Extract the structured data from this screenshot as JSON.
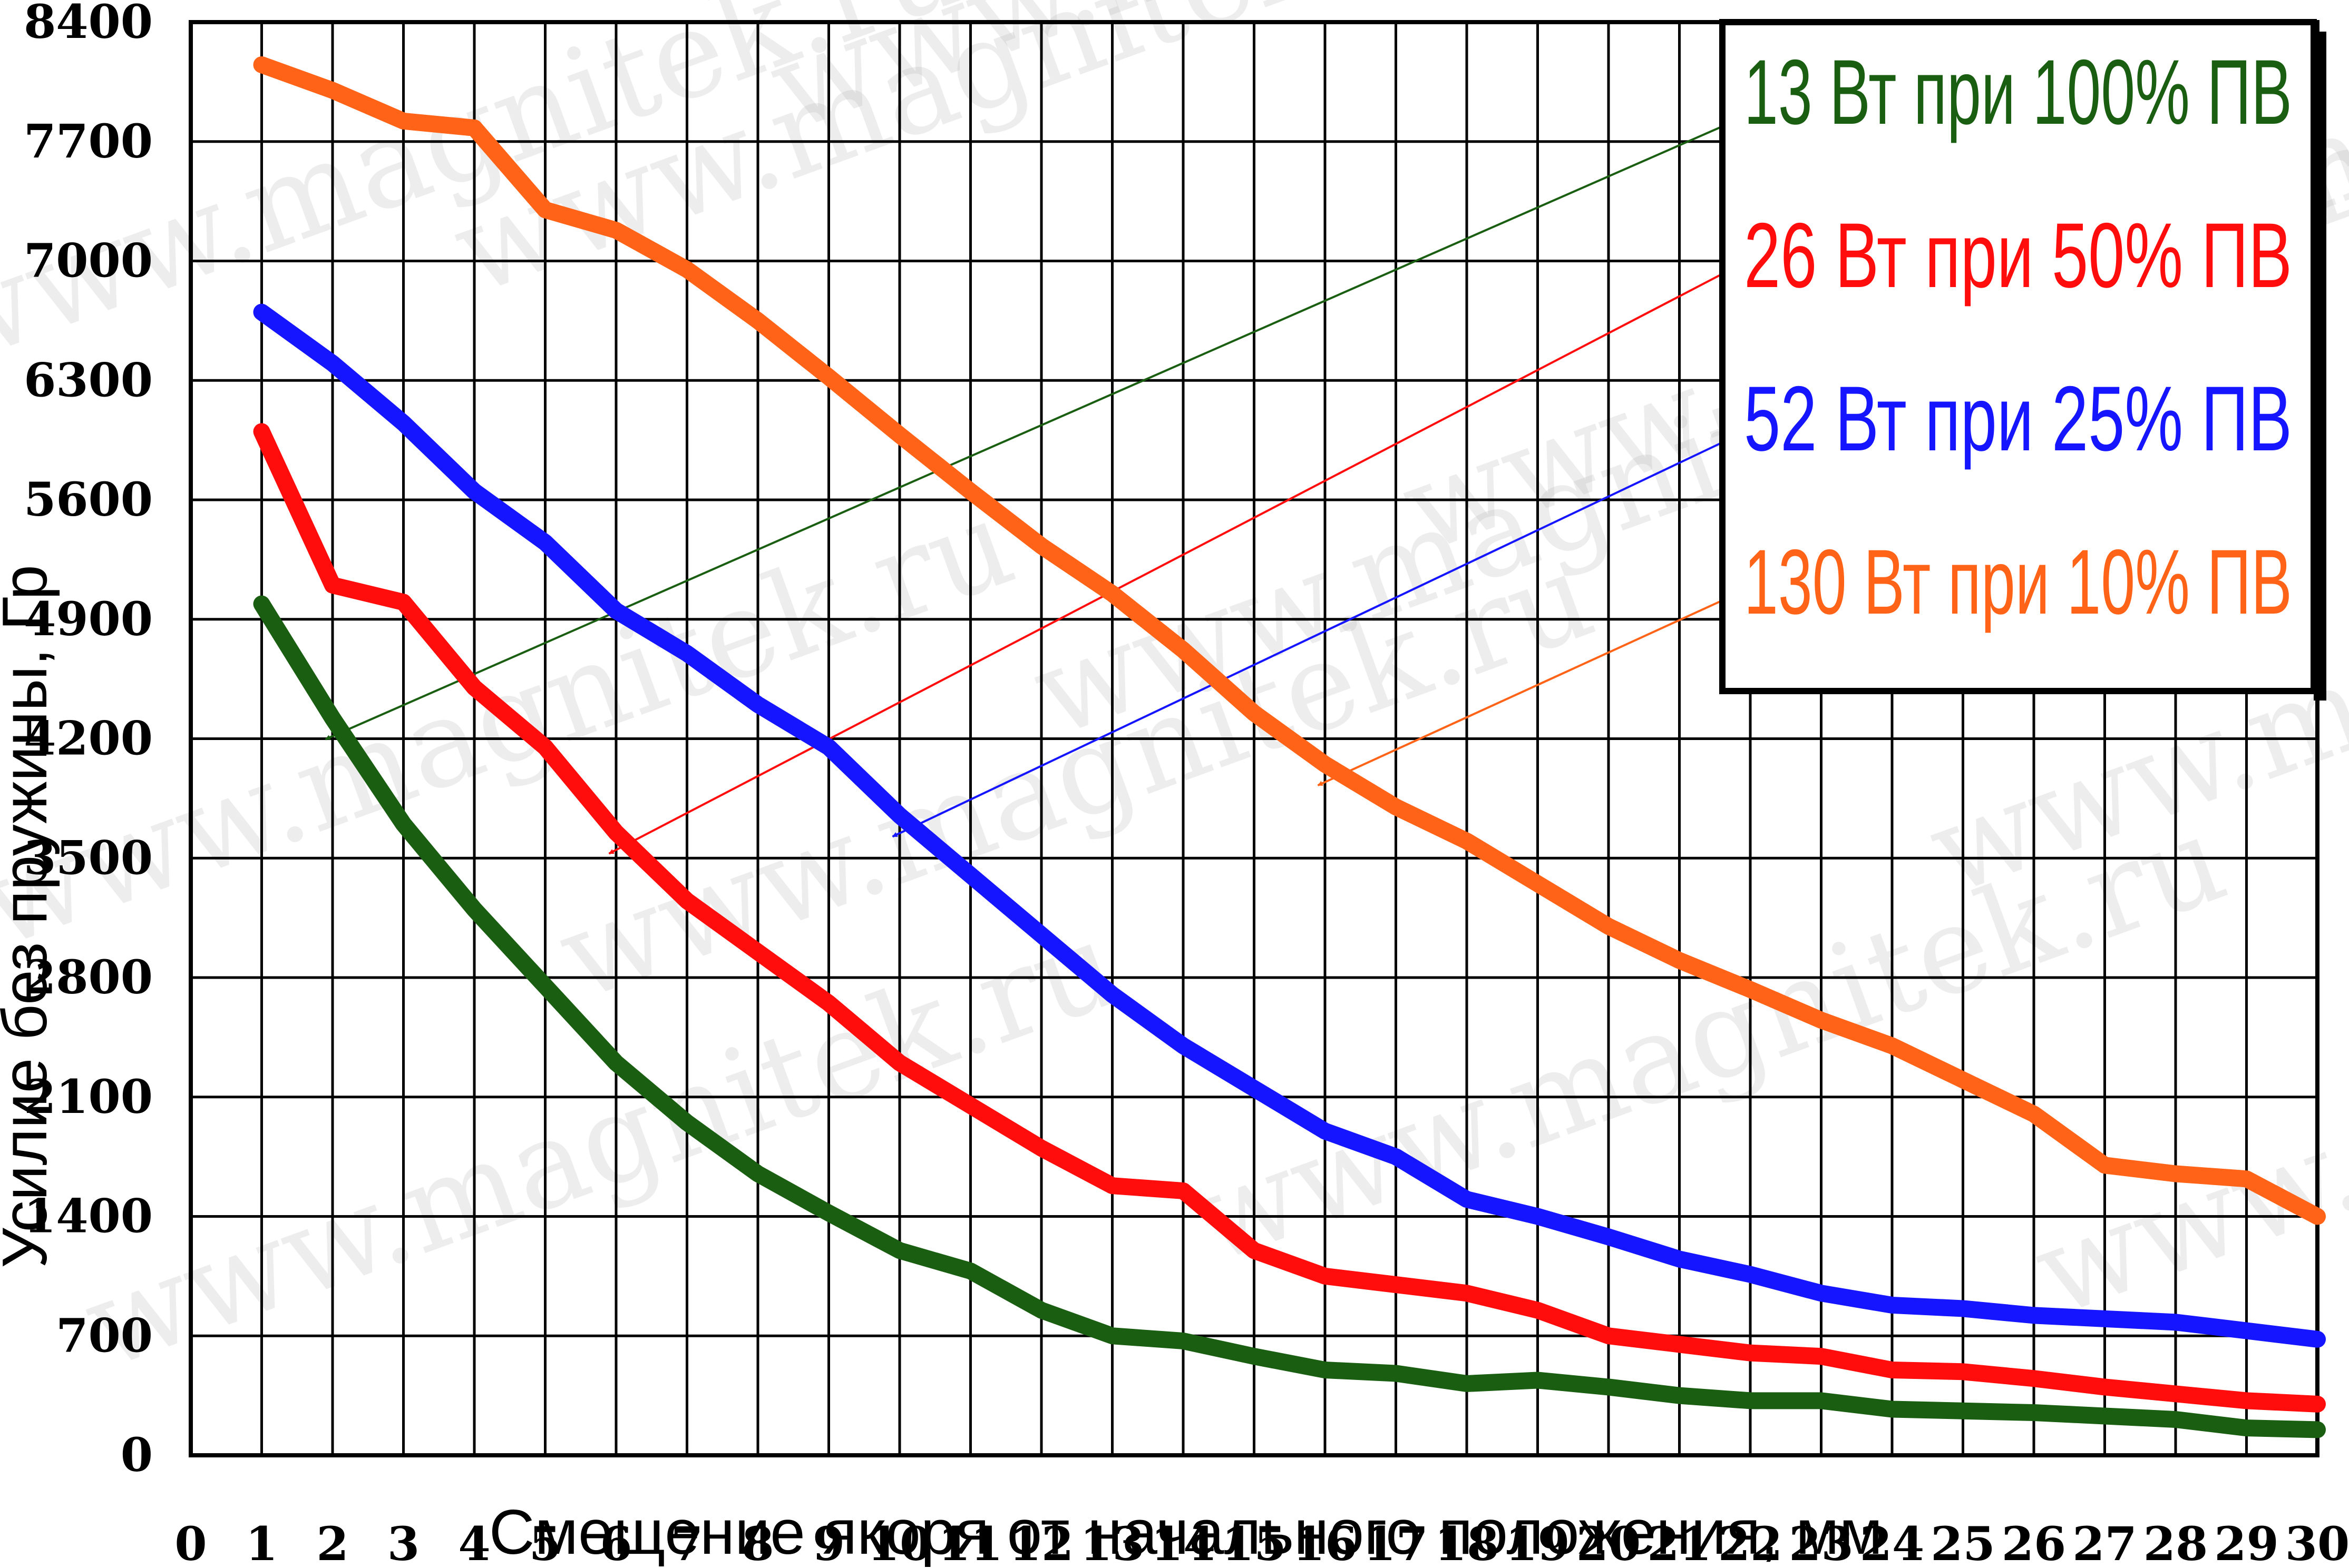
{
  "chart_data": {
    "type": "line",
    "xlabel": "Смещение якоря от начального положения, мм",
    "ylabel": "Усилие без пружины, Гр",
    "x_ticks": [
      "0",
      "1",
      "2",
      "3",
      "4",
      "5",
      "6",
      "7",
      "8",
      "9",
      "10",
      "11",
      "12",
      "13",
      "14",
      "15",
      "16",
      "17",
      "18",
      "19",
      "20",
      "21",
      "22",
      "23",
      "24",
      "25",
      "26",
      "27",
      "28",
      "29",
      "30"
    ],
    "y_ticks": [
      "0",
      "700",
      "1400",
      "2100",
      "2800",
      "3500",
      "4200",
      "4900",
      "5600",
      "6300",
      "7000",
      "7700",
      "8400"
    ],
    "xlim": [
      0,
      30
    ],
    "ylim": [
      0,
      8400
    ],
    "grid": true,
    "legend_position": "top-right",
    "x": [
      1,
      2,
      3,
      4,
      5,
      6,
      7,
      8,
      9,
      10,
      11,
      12,
      13,
      14,
      15,
      16,
      17,
      18,
      19,
      20,
      21,
      22,
      23,
      24,
      25,
      26,
      27,
      28,
      29,
      30
    ],
    "series": [
      {
        "name": "13 Вт при 100% ПВ",
        "color": "#1a5e12",
        "values": [
          4990,
          4320,
          3700,
          3200,
          2750,
          2300,
          1950,
          1650,
          1420,
          1200,
          1080,
          850,
          700,
          670,
          580,
          500,
          480,
          420,
          440,
          400,
          350,
          320,
          320,
          270,
          260,
          250,
          230,
          210,
          160,
          150
        ]
      },
      {
        "name": "26 Вт при 50% ПВ",
        "color": "#ff0d0d",
        "values": [
          6000,
          5100,
          5000,
          4500,
          4150,
          3650,
          3250,
          2950,
          2650,
          2300,
          2050,
          1800,
          1580,
          1550,
          1200,
          1050,
          1000,
          950,
          850,
          700,
          650,
          600,
          580,
          500,
          490,
          450,
          400,
          360,
          320,
          300
        ]
      },
      {
        "name": "52 Вт при 25% ПВ",
        "color": "#1515ff",
        "values": [
          6700,
          6400,
          6050,
          5650,
          5350,
          4950,
          4700,
          4400,
          4150,
          3750,
          3400,
          3050,
          2700,
          2400,
          2150,
          1900,
          1750,
          1500,
          1400,
          1280,
          1150,
          1060,
          950,
          880,
          860,
          820,
          800,
          780,
          730,
          680
        ]
      },
      {
        "name": "130 Вт при 10% ПВ",
        "color": "#ff6318",
        "values": [
          8150,
          8000,
          7820,
          7780,
          7300,
          7180,
          6950,
          6650,
          6320,
          5980,
          5650,
          5330,
          5050,
          4720,
          4350,
          4050,
          3800,
          3600,
          3350,
          3100,
          2900,
          2730,
          2550,
          2400,
          2200,
          2000,
          1700,
          1650,
          1620,
          1400
        ]
      }
    ]
  },
  "legend": {
    "items": [
      {
        "label": "13 Вт при 100% ПВ",
        "color": "#1a5e12"
      },
      {
        "label": "26 Вт при 50% ПВ",
        "color": "#ff0d0d"
      },
      {
        "label": "52 Вт при 25% ПВ",
        "color": "#1515ff"
      },
      {
        "label": "130 Вт при 10% ПВ",
        "color": "#ff6318"
      }
    ]
  },
  "watermark": "www.magnitek.ru"
}
